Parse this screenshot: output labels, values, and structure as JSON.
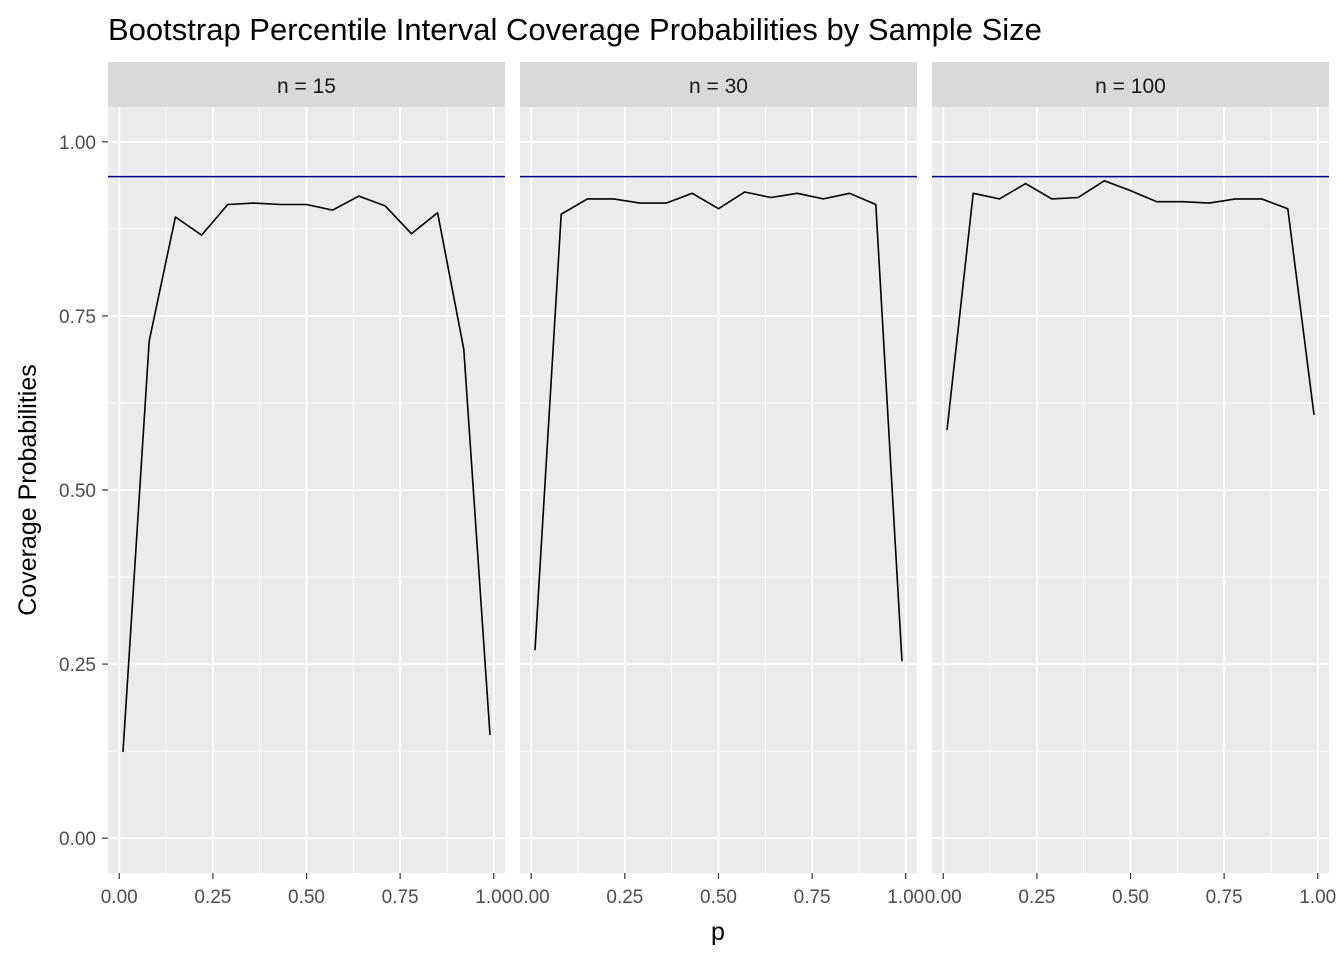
{
  "chart_data": {
    "type": "line",
    "title": "Bootstrap Percentile Interval Coverage Probabilities by Sample Size",
    "xlabel": "p",
    "ylabel": "Coverage Probabilities",
    "xlim": [
      -0.03,
      1.03
    ],
    "ylim": [
      -0.05,
      1.05
    ],
    "x_ticks": [
      0,
      0.25,
      0.5,
      0.75,
      1
    ],
    "x_tick_labels": [
      "0.00",
      "0.25",
      "0.50",
      "0.75",
      "1.00"
    ],
    "y_ticks": [
      0,
      0.25,
      0.5,
      0.75,
      1
    ],
    "y_tick_labels": [
      "0.00",
      "0.25",
      "0.50",
      "0.75",
      "1.00"
    ],
    "grid": true,
    "reference_line": {
      "y": 0.95,
      "color": "#00008b"
    },
    "line_color": "#000000",
    "x": [
      0.01,
      0.08,
      0.15,
      0.22,
      0.29,
      0.36,
      0.43,
      0.5,
      0.57,
      0.64,
      0.71,
      0.78,
      0.85,
      0.92,
      0.99
    ],
    "facets": [
      {
        "label": "n = 15",
        "values": [
          0.124,
          0.714,
          0.892,
          0.866,
          0.91,
          0.912,
          0.91,
          0.91,
          0.902,
          0.922,
          0.908,
          0.868,
          0.898,
          0.702,
          0.148
        ]
      },
      {
        "label": "n = 30",
        "values": [
          0.27,
          0.896,
          0.918,
          0.918,
          0.912,
          0.912,
          0.926,
          0.904,
          0.928,
          0.92,
          0.926,
          0.918,
          0.926,
          0.91,
          0.254
        ]
      },
      {
        "label": "n = 100",
        "values": [
          0.586,
          0.926,
          0.918,
          0.94,
          0.918,
          0.92,
          0.944,
          0.93,
          0.914,
          0.914,
          0.912,
          0.918,
          0.918,
          0.904,
          0.608
        ]
      }
    ]
  }
}
